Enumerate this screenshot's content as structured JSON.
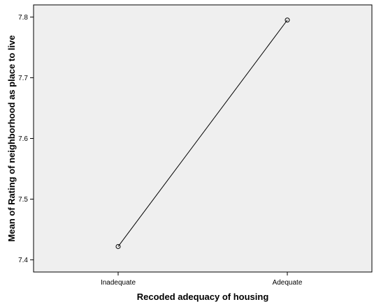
{
  "chart_data": {
    "type": "line",
    "categories": [
      "Inadequate",
      "Adequate"
    ],
    "series": [
      {
        "values": [
          7.422,
          7.795
        ]
      }
    ],
    "xlabel": "Recoded adequacy of housing",
    "ylabel": "Mean of Rating of neighborhood as place to live",
    "ylim": [
      7.38,
      7.82
    ],
    "yticks": [
      "7.4",
      "7.5",
      "7.6",
      "7.7",
      "7.8"
    ],
    "grid": false,
    "markers": "open-circle",
    "colors": {
      "plot_background": "#efefef",
      "line": "#000000",
      "axis": "#000000"
    }
  }
}
